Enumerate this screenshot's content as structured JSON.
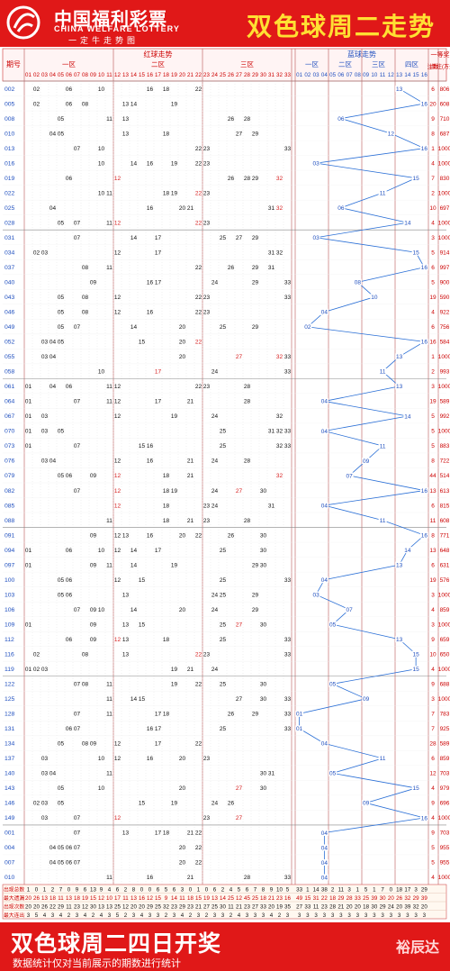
{
  "header": {
    "brand_cn": "中国福利彩票",
    "brand_en": "CHINA WELFARE LOTTERY",
    "brand_slogan": "一定牛走势图",
    "title": "双色球周二走势"
  },
  "footer": {
    "title": "双色球周二四日开奖",
    "note": "数据统计仅对当前展示的期数进行统计",
    "watermark": "裕辰达"
  },
  "colors": {
    "brand_red": "#e01818",
    "title_yellow": "#ffe033",
    "red_ball_hot": "#d61c1c",
    "blue_line": "#2a6fd6",
    "blue_text": "#1f4fbf"
  },
  "chart_data": {
    "type": "table",
    "title": "双色球周二走势",
    "headers": {
      "issue": "期号",
      "red_group": "红球走势",
      "red_zones": [
        "一区",
        "二区",
        "三区"
      ],
      "blue_group": "蓝球走势",
      "blue_zones": [
        "一区",
        "二区",
        "三区",
        "四区"
      ],
      "prize": "一等奖",
      "count": "注数",
      "amount": "单注(万元)"
    },
    "rows": [
      {
        "issue": "002",
        "reds": [
          2,
          6,
          10,
          16,
          18,
          22
        ],
        "blue": 13,
        "count": 6,
        "amount": 806
      },
      {
        "issue": "005",
        "reds": [
          2,
          6,
          8,
          13,
          14,
          19
        ],
        "blue": 16,
        "count": 20,
        "amount": 608
      },
      {
        "issue": "008",
        "reds": [
          5,
          11,
          13,
          26,
          28
        ],
        "blue": 6,
        "count": 9,
        "amount": 710
      },
      {
        "issue": "010",
        "reds": [
          4,
          5,
          13,
          18,
          27,
          29
        ],
        "blue": 12,
        "count": 8,
        "amount": 687
      },
      {
        "issue": "013",
        "reds": [
          7,
          10,
          22,
          23,
          33
        ],
        "blue": 16,
        "count": 1,
        "amount": 1000
      },
      {
        "issue": "016",
        "reds": [
          10,
          14,
          16,
          19,
          22,
          23
        ],
        "blue": 3,
        "count": 4,
        "amount": 1000
      },
      {
        "issue": "019",
        "reds": [
          6,
          12,
          26,
          28,
          29,
          32
        ],
        "blue": 15,
        "count": 7,
        "amount": 830
      },
      {
        "issue": "022",
        "reds": [
          10,
          11,
          18,
          19,
          22,
          23
        ],
        "blue": 11,
        "count": 2,
        "amount": 1000
      },
      {
        "issue": "025",
        "reds": [
          4,
          16,
          20,
          21,
          31,
          32
        ],
        "blue": 6,
        "count": 10,
        "amount": 697
      },
      {
        "issue": "028",
        "reds": [
          5,
          7,
          11,
          12,
          22,
          23
        ],
        "blue": 14,
        "count": 4,
        "amount": 1000
      },
      {
        "issue": "031",
        "reds": [
          7,
          14,
          17,
          25,
          27,
          29
        ],
        "blue": 3,
        "count": 3,
        "amount": 1000
      },
      {
        "issue": "034",
        "reds": [
          2,
          3,
          12,
          17,
          31,
          32
        ],
        "blue": 15,
        "count": 5,
        "amount": 914
      },
      {
        "issue": "037",
        "reds": [
          8,
          11,
          22,
          26,
          29,
          31
        ],
        "blue": 16,
        "count": 6,
        "amount": 997
      },
      {
        "issue": "040",
        "reds": [
          9,
          16,
          17,
          24,
          29,
          33
        ],
        "blue": 8,
        "count": 5,
        "amount": 900
      },
      {
        "issue": "043",
        "reds": [
          5,
          8,
          12,
          22,
          23,
          33
        ],
        "blue": 10,
        "count": 19,
        "amount": 590
      },
      {
        "issue": "046",
        "reds": [
          5,
          8,
          12,
          16,
          22,
          23
        ],
        "blue": 4,
        "count": 4,
        "amount": 922
      },
      {
        "issue": "049",
        "reds": [
          5,
          7,
          14,
          20,
          25,
          29
        ],
        "blue": 2,
        "count": 6,
        "amount": 756
      },
      {
        "issue": "052",
        "reds": [
          3,
          4,
          5,
          15,
          20,
          22
        ],
        "blue": 16,
        "count": 16,
        "amount": 584
      },
      {
        "issue": "055",
        "reds": [
          3,
          4,
          20,
          27,
          32,
          33
        ],
        "blue": 13,
        "count": 1,
        "amount": 1000
      },
      {
        "issue": "058",
        "reds": [
          10,
          17,
          24,
          33
        ],
        "blue": 11,
        "count": 2,
        "amount": 993
      },
      {
        "issue": "061",
        "reds": [
          1,
          4,
          6,
          11,
          12,
          22,
          23,
          28
        ],
        "blue": 13,
        "count": 3,
        "amount": 1000
      },
      {
        "issue": "064",
        "reds": [
          1,
          7,
          11,
          12,
          17,
          21,
          28
        ],
        "blue": 4,
        "count": 19,
        "amount": 589
      },
      {
        "issue": "067",
        "reds": [
          1,
          3,
          12,
          19,
          24,
          32
        ],
        "blue": 14,
        "count": 5,
        "amount": 992
      },
      {
        "issue": "070",
        "reds": [
          1,
          3,
          5,
          25,
          31,
          32,
          33
        ],
        "blue": 4,
        "count": 5,
        "amount": 1000
      },
      {
        "issue": "073",
        "reds": [
          1,
          7,
          15,
          16,
          25,
          32,
          33
        ],
        "blue": 11,
        "count": 5,
        "amount": 883
      },
      {
        "issue": "076",
        "reds": [
          3,
          4,
          12,
          16,
          21,
          24,
          28
        ],
        "blue": 9,
        "count": 8,
        "amount": 722
      },
      {
        "issue": "079",
        "reds": [
          5,
          6,
          9,
          12,
          18,
          21,
          32
        ],
        "blue": 7,
        "count": 44,
        "amount": 514
      },
      {
        "issue": "082",
        "reds": [
          7,
          12,
          18,
          19,
          24,
          27,
          30
        ],
        "blue": 16,
        "count": 13,
        "amount": 613
      },
      {
        "issue": "085",
        "reds": [
          12,
          18,
          23,
          24,
          31
        ],
        "blue": 4,
        "count": 6,
        "amount": 815
      },
      {
        "issue": "088",
        "reds": [
          11,
          18,
          21,
          23,
          28
        ],
        "blue": 11,
        "count": 11,
        "amount": 608
      },
      {
        "issue": "091",
        "reds": [
          9,
          12,
          13,
          16,
          20,
          22,
          26,
          30
        ],
        "blue": 16,
        "count": 8,
        "amount": 771
      },
      {
        "issue": "094",
        "reds": [
          1,
          6,
          10,
          12,
          14,
          17,
          25,
          30
        ],
        "blue": 14,
        "count": 13,
        "amount": 648
      },
      {
        "issue": "097",
        "reds": [
          1,
          9,
          11,
          14,
          19,
          29,
          30
        ],
        "blue": 13,
        "count": 6,
        "amount": 631
      },
      {
        "issue": "100",
        "reds": [
          5,
          6,
          12,
          15,
          25,
          33
        ],
        "blue": 4,
        "count": 19,
        "amount": 576
      },
      {
        "issue": "103",
        "reds": [
          5,
          6,
          13,
          24,
          25,
          29
        ],
        "blue": 3,
        "count": 3,
        "amount": 1000
      },
      {
        "issue": "106",
        "reds": [
          7,
          9,
          10,
          14,
          20,
          24,
          29
        ],
        "blue": 7,
        "count": 4,
        "amount": 859
      },
      {
        "issue": "109",
        "reds": [
          1,
          9,
          13,
          15,
          25,
          27,
          30
        ],
        "blue": 5,
        "count": 3,
        "amount": 1000
      },
      {
        "issue": "112",
        "reds": [
          6,
          9,
          12,
          13,
          18,
          25,
          33
        ],
        "blue": 13,
        "count": 9,
        "amount": 659
      },
      {
        "issue": "116",
        "reds": [
          2,
          8,
          13,
          22,
          23,
          33
        ],
        "blue": 15,
        "count": 10,
        "amount": 650
      },
      {
        "issue": "119",
        "reds": [
          1,
          2,
          3,
          19,
          21,
          24
        ],
        "blue": 15,
        "count": 4,
        "amount": 1000
      },
      {
        "issue": "122",
        "reds": [
          7,
          8,
          11,
          19,
          22,
          25,
          30
        ],
        "blue": 5,
        "count": 9,
        "amount": 688
      },
      {
        "issue": "125",
        "reds": [
          11,
          14,
          15,
          27,
          30,
          33
        ],
        "blue": 9,
        "count": 3,
        "amount": 1000
      },
      {
        "issue": "128",
        "reds": [
          7,
          11,
          17,
          18,
          26,
          29,
          33
        ],
        "blue": 1,
        "count": 7,
        "amount": 783
      },
      {
        "issue": "131",
        "reds": [
          6,
          7,
          16,
          17,
          25,
          33
        ],
        "blue": 1,
        "count": 7,
        "amount": 925
      },
      {
        "issue": "134",
        "reds": [
          5,
          8,
          9,
          12,
          17,
          22
        ],
        "blue": 4,
        "count": 28,
        "amount": 589
      },
      {
        "issue": "137",
        "reds": [
          3,
          10,
          12,
          16,
          20,
          23
        ],
        "blue": 11,
        "count": 6,
        "amount": 859
      },
      {
        "issue": "140",
        "reds": [
          3,
          4,
          11,
          30,
          31
        ],
        "blue": 5,
        "count": 12,
        "amount": 703
      },
      {
        "issue": "143",
        "reds": [
          5,
          10,
          20,
          27,
          30
        ],
        "blue": 15,
        "count": 4,
        "amount": 979
      },
      {
        "issue": "146",
        "reds": [
          2,
          3,
          5,
          15,
          19,
          24,
          26
        ],
        "blue": 9,
        "count": 9,
        "amount": 696
      },
      {
        "issue": "149",
        "reds": [
          3,
          7,
          12,
          23,
          27
        ],
        "blue": 16,
        "count": 4,
        "amount": 1000
      },
      {
        "issue": "001",
        "reds": [
          7,
          13,
          17,
          18,
          21,
          22
        ],
        "blue": 4,
        "count": 9,
        "amount": 703
      },
      {
        "issue": "004",
        "reds": [
          4,
          5,
          6,
          7,
          20,
          22
        ],
        "blue": 4,
        "count": 5,
        "amount": 955
      },
      {
        "issue": "007",
        "reds": [
          4,
          5,
          6,
          7,
          20,
          22
        ],
        "blue": 4,
        "count": 5,
        "amount": 955
      },
      {
        "issue": "010",
        "reds": [
          11,
          16,
          21,
          28,
          33
        ],
        "blue": 4,
        "count": 4,
        "amount": 1000
      }
    ],
    "summary": {
      "labels": [
        "出现总数",
        "最大遗漏",
        "出现次数",
        "最大连出"
      ],
      "values": [
        [
          1,
          0,
          1,
          2,
          7,
          0,
          9,
          6,
          13,
          9,
          4,
          6,
          2,
          8,
          0,
          0,
          6,
          5,
          6,
          3,
          0,
          1,
          0,
          6,
          2,
          4,
          5,
          6,
          7,
          8,
          9,
          10,
          5,
          33,
          1,
          14,
          38,
          2,
          11,
          3,
          1,
          5,
          1,
          7,
          0,
          18,
          17,
          3,
          29,
          6
        ],
        [
          20,
          26,
          13,
          18,
          11,
          13,
          18,
          19,
          15,
          12,
          10,
          17,
          11,
          13,
          16,
          12,
          15,
          9,
          14,
          11,
          18,
          15,
          19,
          13,
          14,
          25,
          12,
          45,
          25,
          18,
          21,
          23,
          16,
          49,
          15,
          31,
          22,
          18,
          29,
          28,
          33,
          25,
          39,
          30,
          20,
          26,
          32,
          29,
          39,
          21
        ],
        [
          20,
          20,
          26,
          22,
          29,
          11,
          23,
          12,
          30,
          13,
          13,
          25,
          12,
          20,
          20,
          29,
          25,
          32,
          23,
          29,
          23,
          21,
          27,
          25,
          30,
          11,
          21,
          23,
          27,
          33,
          20,
          19,
          35,
          27,
          33,
          11,
          23,
          28,
          21,
          20,
          20,
          18,
          30,
          29,
          24,
          20,
          39,
          32,
          20,
          19
        ],
        [
          3,
          5,
          4,
          3,
          4,
          2,
          3,
          4,
          2,
          4,
          3,
          5,
          2,
          3,
          4,
          3,
          3,
          2,
          3,
          4,
          2,
          3,
          2,
          3,
          3,
          2,
          4,
          3,
          3,
          3,
          4,
          2,
          3,
          3,
          3,
          3,
          3,
          3,
          3,
          3,
          3,
          3,
          3,
          3,
          3,
          3,
          3,
          3,
          3,
          3
        ]
      ]
    },
    "xlim": [
      1,
      33
    ],
    "blue_xlim": [
      1,
      16
    ]
  }
}
